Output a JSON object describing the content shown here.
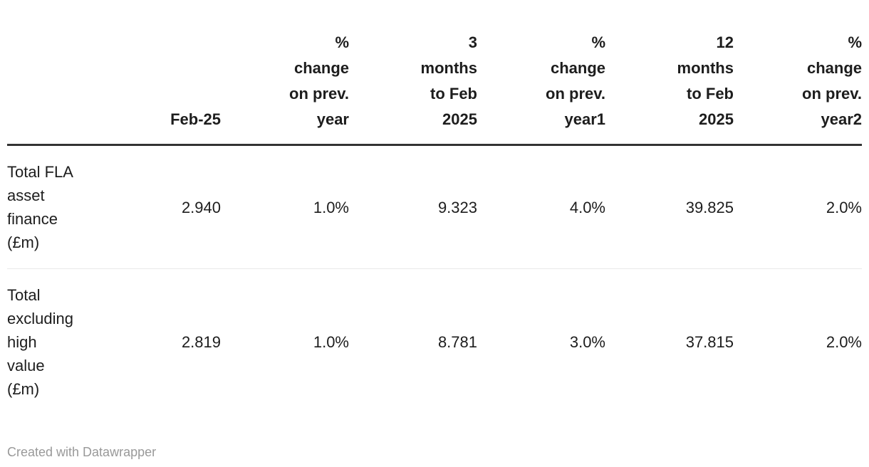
{
  "chart_data": {
    "type": "table",
    "columns": [
      "",
      "Feb-25",
      "% change on prev. year",
      "3 months to Feb 2025",
      "% change on prev. year1",
      "12 months to Feb 2025",
      "% change on prev. year2"
    ],
    "rows": [
      [
        "Total FLA asset finance (£m)",
        "2.940",
        "1.0%",
        "9.323",
        "4.0%",
        "39.825",
        "2.0%"
      ],
      [
        "Total excluding high value (£m)",
        "2.819",
        "1.0%",
        "8.781",
        "3.0%",
        "37.815",
        "2.0%"
      ]
    ],
    "attribution": "Created with Datawrapper"
  },
  "table": {
    "columns": [
      {
        "label": ""
      },
      {
        "label": "Feb-25"
      },
      {
        "label": "%\nchange\non prev.\nyear"
      },
      {
        "label": "3\nmonths\nto Feb\n2025"
      },
      {
        "label": "%\nchange\non prev.\nyear1"
      },
      {
        "label": "12\nmonths\nto Feb\n2025"
      },
      {
        "label": "%\nchange\non prev.\nyear2"
      }
    ],
    "rows": [
      {
        "header": "Total FLA\nasset\nfinance\n(£m)",
        "values": [
          "2.940",
          "1.0%",
          "9.323",
          "4.0%",
          "39.825",
          "2.0%"
        ]
      },
      {
        "header": "Total\nexcluding\nhigh\nvalue\n(£m)",
        "values": [
          "2.819",
          "1.0%",
          "8.781",
          "3.0%",
          "37.815",
          "2.0%"
        ]
      }
    ]
  },
  "footer": {
    "text": "Created with Datawrapper"
  },
  "colors": {
    "text": "#1d1d1d",
    "header_border": "#333333",
    "row_divider": "#e8e8e8",
    "footer_text": "#999999"
  }
}
